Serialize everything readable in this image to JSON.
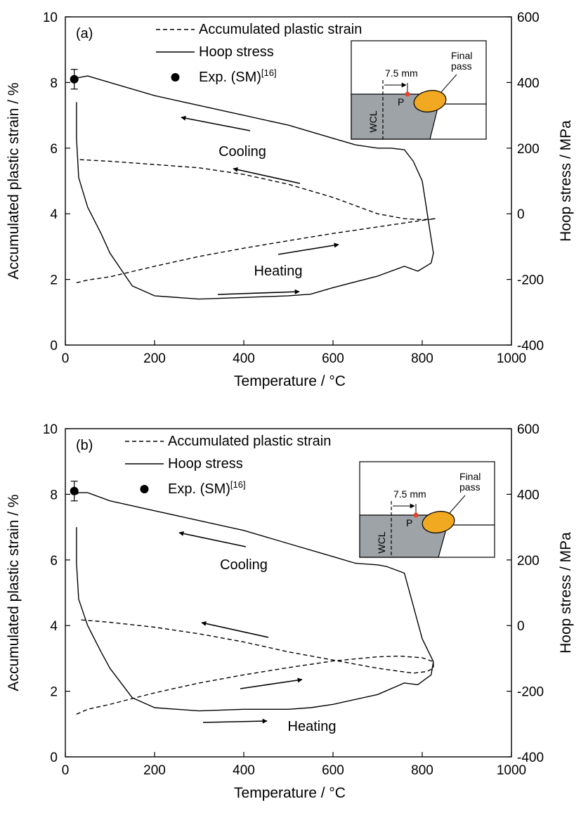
{
  "chart_data": [
    {
      "type": "line",
      "panel_label": "(a)",
      "xlabel": "Temperature / °C",
      "ylabel_left": "Accumulated plastic strain / %",
      "ylabel_right": "Hoop stress / MPa",
      "xlim": [
        0,
        1000
      ],
      "ylim_left": [
        0,
        10
      ],
      "ylim_right": [
        -400,
        600
      ],
      "xticks": [
        "0",
        "200",
        "400",
        "600",
        "800",
        "1000"
      ],
      "yticks_left": [
        "0",
        "2",
        "4",
        "6",
        "8",
        "10"
      ],
      "yticks_right": [
        "-400",
        "-200",
        "0",
        "200",
        "400",
        "600"
      ],
      "grid": false,
      "legend_position": "top",
      "legend": [
        {
          "label": "Accumulated plastic strain",
          "style": "dashed"
        },
        {
          "label": "Hoop stress",
          "style": "solid"
        },
        {
          "label": "Exp. (SM)",
          "sup": "[16]",
          "style": "marker"
        }
      ],
      "annotations": {
        "cooling": "Cooling",
        "heating": "Heating"
      },
      "inset": {
        "dim": "7.5  mm",
        "final_pass": [
          "Final",
          "pass"
        ],
        "point": "P",
        "wcl": "WCL"
      },
      "series": [
        {
          "name": "Accumulated plastic strain",
          "axis": "left",
          "x": [
            25,
            50,
            100,
            200,
            300,
            400,
            500,
            600,
            700,
            800,
            830,
            800,
            760,
            700,
            600,
            500,
            400,
            300,
            200,
            100,
            30
          ],
          "y": [
            1.9,
            1.98,
            2.08,
            2.4,
            2.7,
            2.95,
            3.18,
            3.4,
            3.6,
            3.8,
            3.85,
            3.82,
            3.85,
            4.0,
            4.5,
            4.9,
            5.2,
            5.4,
            5.5,
            5.6,
            5.65
          ]
        },
        {
          "name": "Hoop stress",
          "axis": "right",
          "x": [
            25,
            25,
            30,
            50,
            80,
            100,
            150,
            200,
            300,
            400,
            500,
            550,
            600,
            700,
            760,
            790,
            820,
            825,
            800,
            780,
            760,
            730,
            700,
            650,
            600,
            500,
            400,
            300,
            200,
            100,
            50,
            30,
            25
          ],
          "y": [
            340,
            230,
            110,
            20,
            -60,
            -120,
            -220,
            -250,
            -260,
            -255,
            -250,
            -245,
            -225,
            -190,
            -160,
            -175,
            -150,
            -120,
            100,
            160,
            195,
            200,
            200,
            210,
            230,
            270,
            300,
            330,
            360,
            400,
            420,
            415,
            410
          ]
        },
        {
          "name": "Exp. (SM)",
          "axis": "left",
          "type": "scatter",
          "x": [
            20
          ],
          "y": [
            8.1
          ],
          "yerr": [
            0.3
          ]
        }
      ]
    },
    {
      "type": "line",
      "panel_label": "(b)",
      "xlabel": "Temperature / °C",
      "ylabel_left": "Accumulated plastic strain / %",
      "ylabel_right": "Hoop stress / MPa",
      "xlim": [
        0,
        1000
      ],
      "ylim_left": [
        0,
        10
      ],
      "ylim_right": [
        -400,
        600
      ],
      "xticks": [
        "0",
        "200",
        "400",
        "600",
        "800",
        "1000"
      ],
      "yticks_left": [
        "0",
        "2",
        "4",
        "6",
        "8",
        "10"
      ],
      "yticks_right": [
        "-400",
        "-200",
        "0",
        "200",
        "400",
        "600"
      ],
      "grid": false,
      "legend_position": "top",
      "legend": [
        {
          "label": "Accumulated plastic strain",
          "style": "dashed"
        },
        {
          "label": "Hoop stress",
          "style": "solid"
        },
        {
          "label": "Exp. (SM)",
          "sup": "[16]",
          "style": "marker"
        }
      ],
      "annotations": {
        "cooling": "Cooling",
        "heating": "Heating"
      },
      "inset": {
        "dim": "7.5  mm",
        "final_pass": [
          "Final",
          "pass"
        ],
        "point": "P",
        "wcl": "WCL"
      },
      "series": [
        {
          "name": "Accumulated plastic strain",
          "axis": "left",
          "x": [
            25,
            50,
            100,
            200,
            300,
            400,
            500,
            600,
            700,
            750,
            800,
            825,
            825,
            810,
            780,
            700,
            600,
            500,
            400,
            300,
            200,
            100,
            30
          ],
          "y": [
            1.3,
            1.45,
            1.6,
            1.95,
            2.25,
            2.5,
            2.72,
            2.92,
            3.05,
            3.07,
            3.02,
            2.9,
            2.7,
            2.6,
            2.55,
            2.7,
            2.95,
            3.2,
            3.5,
            3.75,
            3.95,
            4.1,
            4.18
          ]
        },
        {
          "name": "Hoop stress",
          "axis": "right",
          "x": [
            25,
            25,
            30,
            50,
            80,
            100,
            150,
            200,
            300,
            400,
            500,
            550,
            600,
            700,
            760,
            790,
            820,
            825,
            800,
            760,
            720,
            700,
            650,
            600,
            500,
            400,
            300,
            200,
            100,
            50,
            30,
            25
          ],
          "y": [
            300,
            190,
            80,
            0,
            -80,
            -130,
            -220,
            -250,
            -260,
            -255,
            -255,
            -250,
            -240,
            -210,
            -175,
            -180,
            -150,
            -110,
            -40,
            160,
            180,
            185,
            190,
            210,
            250,
            290,
            320,
            350,
            380,
            405,
            405,
            400
          ]
        },
        {
          "name": "Exp. (SM)",
          "axis": "left",
          "type": "scatter",
          "x": [
            20
          ],
          "y": [
            8.1
          ],
          "yerr": [
            0.3
          ]
        }
      ]
    }
  ]
}
